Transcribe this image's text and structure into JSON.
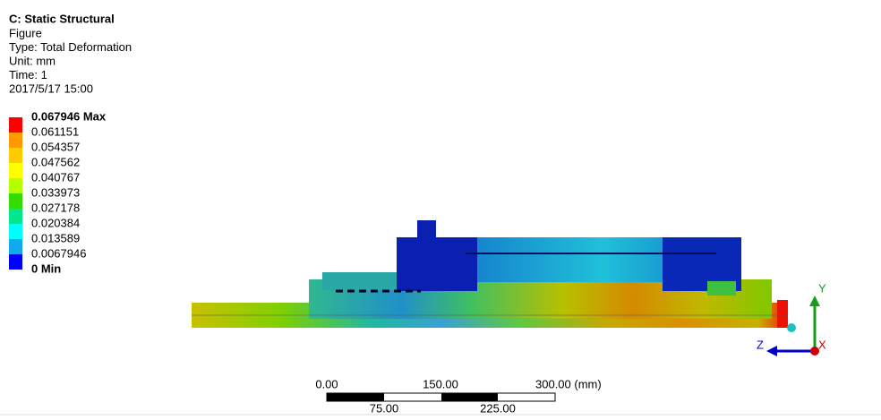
{
  "header": {
    "title": "C: Static Structural",
    "lines": [
      "Figure",
      "Type: Total Deformation",
      "Unit: mm",
      "Time: 1",
      "2017/5/17 15:00"
    ]
  },
  "legend": {
    "labels": [
      "0.067946 Max",
      "0.061151",
      "0.054357",
      "0.047562",
      "0.040767",
      "0.033973",
      "0.027178",
      "0.020384",
      "0.013589",
      "0.0067946",
      "0 Min"
    ],
    "colors": [
      "#ff0000",
      "#ff9900",
      "#ffcc00",
      "#ffff00",
      "#b4ff00",
      "#33dd00",
      "#00e88c",
      "#00ffff",
      "#11aaee",
      "#0000ff"
    ]
  },
  "scale_bar": {
    "top_labels": [
      "0.00",
      "150.00",
      "300.00 (mm)"
    ],
    "bottom_labels": [
      "75.00",
      "225.00"
    ]
  },
  "triad": {
    "y": "Y",
    "z": "Z",
    "x": "X"
  }
}
